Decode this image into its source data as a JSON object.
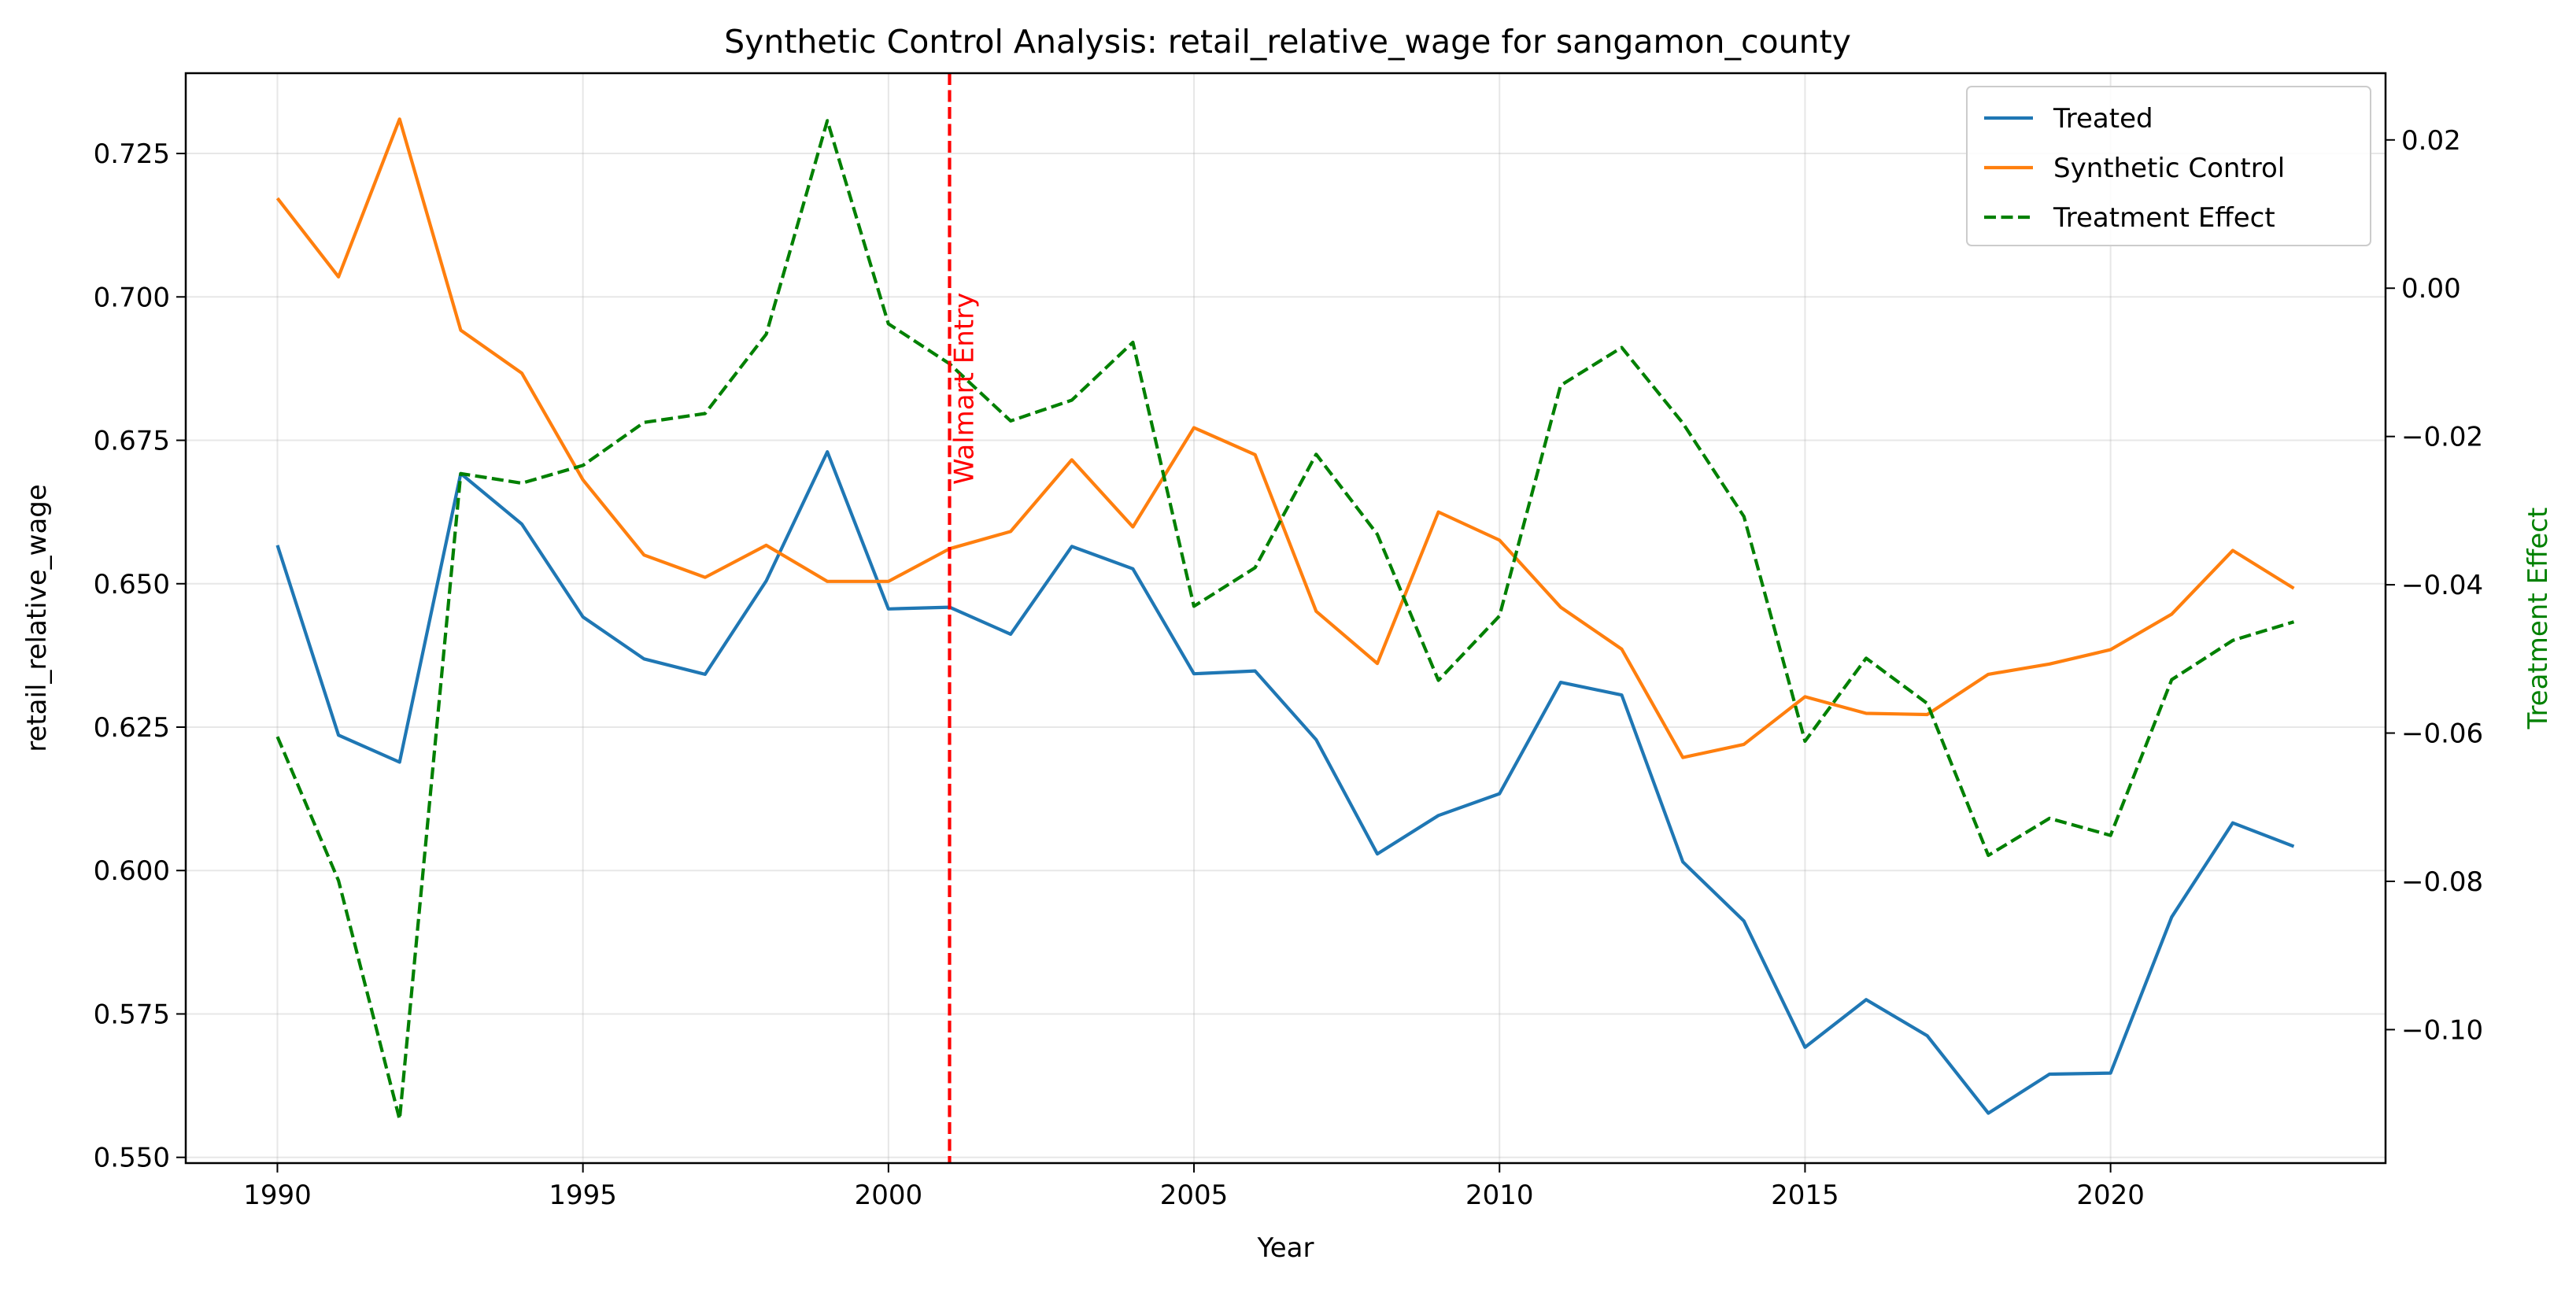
{
  "chart_data": {
    "type": "line",
    "title": "Synthetic Control Analysis: retail_relative_wage for sangamon_county",
    "xlabel": "Year",
    "ylabel": "retail_relative_wage",
    "y2label": "Treatment Effect",
    "xlim": [
      1988.5,
      2024.5
    ],
    "ylim": [
      0.549,
      0.739
    ],
    "y2lim": [
      -0.118,
      0.029
    ],
    "x_ticks": [
      1990,
      1995,
      2000,
      2005,
      2010,
      2015,
      2020
    ],
    "y_ticks": [
      0.55,
      0.575,
      0.6,
      0.625,
      0.65,
      0.675,
      0.7,
      0.725
    ],
    "y_tick_labels": [
      "0.550",
      "0.575",
      "0.600",
      "0.625",
      "0.650",
      "0.675",
      "0.700",
      "0.725"
    ],
    "y2_ticks": [
      0.02,
      0.0,
      -0.02,
      -0.04,
      -0.06,
      -0.08,
      -0.1
    ],
    "y2_tick_labels": [
      "0.02",
      "0.00",
      "−0.02",
      "−0.04",
      "−0.06",
      "−0.08",
      "−0.10"
    ],
    "grid": true,
    "legend_position": "top-right",
    "x": [
      1990,
      1991,
      1992,
      1993,
      1994,
      1995,
      1996,
      1997,
      1998,
      1999,
      2000,
      2001,
      2002,
      2003,
      2004,
      2005,
      2006,
      2007,
      2008,
      2009,
      2010,
      2011,
      2012,
      2013,
      2014,
      2015,
      2016,
      2017,
      2018,
      2019,
      2020,
      2021,
      2022,
      2023
    ],
    "series": [
      {
        "name": "Treated",
        "axis": "left",
        "color": "#1f77b4",
        "style": "solid",
        "values": [
          0.6567,
          0.6236,
          0.6189,
          0.6692,
          0.6604,
          0.6442,
          0.6369,
          0.6342,
          0.6505,
          0.673,
          0.6456,
          0.6459,
          0.6412,
          0.6565,
          0.6526,
          0.6343,
          0.6348,
          0.6228,
          0.6029,
          0.6096,
          0.6134,
          0.6328,
          0.6306,
          0.6015,
          0.5912,
          0.5692,
          0.5775,
          0.5712,
          0.5577,
          0.5645,
          0.5647,
          0.5919,
          0.6083,
          0.6042
        ]
      },
      {
        "name": "Synthetic Control",
        "axis": "left",
        "color": "#ff7f0e",
        "style": "solid",
        "values": [
          0.7172,
          0.7035,
          0.731,
          0.6942,
          0.6867,
          0.6681,
          0.655,
          0.6511,
          0.6567,
          0.6504,
          0.6504,
          0.6561,
          0.6591,
          0.6716,
          0.6599,
          0.6772,
          0.6725,
          0.6452,
          0.6361,
          0.6625,
          0.6576,
          0.6459,
          0.6386,
          0.6197,
          0.622,
          0.6303,
          0.6274,
          0.6272,
          0.6342,
          0.636,
          0.6385,
          0.6447,
          0.6558,
          0.6492
        ]
      },
      {
        "name": "Treatment Effect",
        "axis": "right",
        "color": "#008000",
        "style": "dashed",
        "values": [
          -0.0605,
          -0.0799,
          -0.1121,
          -0.025,
          -0.0263,
          -0.0239,
          -0.0181,
          -0.0169,
          -0.0062,
          0.0226,
          -0.0048,
          -0.0102,
          -0.0179,
          -0.0151,
          -0.0073,
          -0.0429,
          -0.0377,
          -0.0224,
          -0.0332,
          -0.0529,
          -0.0442,
          -0.0131,
          -0.008,
          -0.0182,
          -0.0308,
          -0.0611,
          -0.0499,
          -0.056,
          -0.0765,
          -0.0715,
          -0.0738,
          -0.0528,
          -0.0475,
          -0.045
        ]
      }
    ],
    "annotations": [
      {
        "type": "vline",
        "x": 2001,
        "color": "#ff0000",
        "style": "dashed",
        "label": "Walmart Entry"
      }
    ]
  }
}
